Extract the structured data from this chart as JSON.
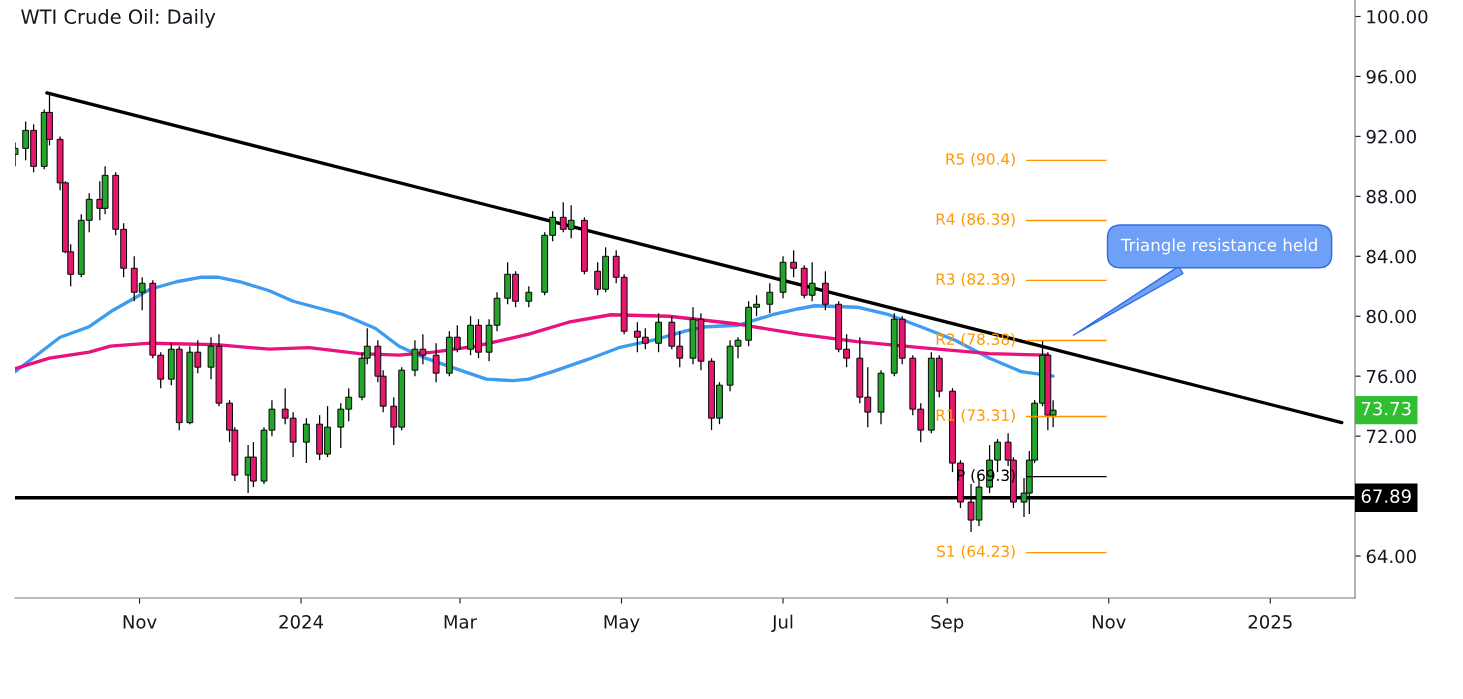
{
  "chart_data": {
    "type": "candlestick",
    "title": "WTI Crude Oil: Daily",
    "colors": [
      "#22a52a",
      "#22a52a",
      "#e6186e",
      "#22a52a",
      "#e6186e",
      "#e6186e",
      "#e6186e",
      "#e6186e",
      "#22a52a",
      "#22a52a",
      "#e6186e",
      "#22a52a",
      "#e6186e",
      "#e6186e",
      "#e6186e",
      "#22a52a",
      "#e6186e",
      "#e6186e",
      "#22a52a",
      "#e6186e",
      "#22a52a",
      "#e6186e",
      "#22a52a",
      "#e6186e",
      "#e6186e",
      "#e6186e",
      "#22a52a",
      "#e6186e",
      "#22a52a",
      "#22a52a",
      "#e6186e",
      "#e6186e",
      "#22a52a",
      "#e6186e",
      "#22a52a",
      "#22a52a",
      "#22a52a",
      "#22a52a",
      "#22a52a",
      "#e6186e",
      "#e6186e",
      "#e6186e",
      "#22a52a",
      "#22a52a",
      "#e6186e",
      "#e6186e",
      "#22a52a",
      "#e6186e",
      "#22a52a",
      "#e6186e",
      "#22a52a",
      "#22a52a",
      "#22a52a",
      "#e6186e",
      "#22a52a",
      "#22a52a",
      "#22a52a",
      "#e6186e",
      "#22a52a",
      "#e6186e",
      "#e6186e",
      "#22a52a",
      "#e6186e",
      "#e6186e",
      "#e6186e",
      "#e6186e",
      "#22a52a",
      "#e6186e",
      "#e6186e",
      "#22a52a",
      "#e6186e",
      "#e6186e",
      "#22a52a",
      "#22a52a",
      "#22a52a",
      "#22a52a",
      "#22a52a",
      "#22a52a",
      "#22a52a",
      "#e6186e",
      "#e6186e",
      "#22a52a",
      "#e6186e",
      "#e6186e",
      "#e6186e",
      "#e6186e",
      "#e6186e",
      "#22a52a",
      "#22a52a",
      "#e6186e",
      "#e6186e",
      "#e6186e",
      "#22a52a",
      "#e6186e",
      "#e6186e",
      "#e6186e",
      "#e6186e",
      "#22a52a",
      "#22a52a",
      "#22a52a",
      "#e6186e",
      "#e6186e",
      "#22a52a",
      "#22a52a",
      "#22a52a",
      "#22a52a",
      "#e6186e",
      "#22a52a"
    ],
    "x": [
      "2023-09-15",
      "2023-09-19",
      "2023-09-22",
      "2023-09-26",
      "2023-09-28",
      "2023-10-02",
      "2023-10-04",
      "2023-10-06",
      "2023-10-10",
      "2023-10-13",
      "2023-10-17",
      "2023-10-19",
      "2023-10-23",
      "2023-10-26",
      "2023-10-30",
      "2023-11-02",
      "2023-11-06",
      "2023-11-09",
      "2023-11-13",
      "2023-11-16",
      "2023-11-20",
      "2023-11-23",
      "2023-11-28",
      "2023-12-01",
      "2023-12-05",
      "2023-12-07",
      "2023-12-12",
      "2023-12-14",
      "2023-12-18",
      "2023-12-21",
      "2023-12-26",
      "2023-12-29",
      "2024-01-03",
      "2024-01-08",
      "2024-01-11",
      "2024-01-16",
      "2024-01-19",
      "2024-01-24",
      "2024-01-26",
      "2024-01-30",
      "2024-02-01",
      "2024-02-05",
      "2024-02-08",
      "2024-02-13",
      "2024-02-16",
      "2024-02-21",
      "2024-02-26",
      "2024-02-29",
      "2024-03-05",
      "2024-03-08",
      "2024-03-12",
      "2024-03-15",
      "2024-03-19",
      "2024-03-22",
      "2024-03-27",
      "2024-04-02",
      "2024-04-05",
      "2024-04-09",
      "2024-04-12",
      "2024-04-17",
      "2024-04-22",
      "2024-04-25",
      "2024-04-29",
      "2024-05-02",
      "2024-05-07",
      "2024-05-10",
      "2024-05-15",
      "2024-05-20",
      "2024-05-23",
      "2024-05-28",
      "2024-05-31",
      "2024-06-04",
      "2024-06-07",
      "2024-06-11",
      "2024-06-14",
      "2024-06-18",
      "2024-06-21",
      "2024-06-26",
      "2024-07-01",
      "2024-07-05",
      "2024-07-09",
      "2024-07-12",
      "2024-07-17",
      "2024-07-22",
      "2024-07-25",
      "2024-07-30",
      "2024-08-02",
      "2024-08-07",
      "2024-08-12",
      "2024-08-15",
      "2024-08-19",
      "2024-08-22",
      "2024-08-26",
      "2024-08-29",
      "2024-09-03",
      "2024-09-06",
      "2024-09-10",
      "2024-09-13",
      "2024-09-17",
      "2024-09-20",
      "2024-09-24",
      "2024-09-26",
      "2024-09-30",
      "2024-10-02",
      "2024-10-04",
      "2024-10-07",
      "2024-10-09",
      "2024-10-11"
    ],
    "ohlc": [
      [
        90.8,
        91.6,
        90.0,
        91.2
      ],
      [
        91.2,
        93.0,
        90.4,
        92.4
      ],
      [
        92.4,
        92.8,
        89.6,
        90.0
      ],
      [
        90.0,
        93.8,
        89.8,
        93.6
      ],
      [
        93.6,
        94.9,
        91.4,
        91.8
      ],
      [
        91.8,
        92.0,
        88.4,
        88.9
      ],
      [
        88.9,
        89.0,
        84.2,
        84.3
      ],
      [
        84.3,
        84.8,
        82.0,
        82.8
      ],
      [
        82.8,
        86.8,
        82.6,
        86.4
      ],
      [
        86.4,
        88.2,
        85.6,
        87.8
      ],
      [
        87.8,
        89.0,
        86.4,
        87.2
      ],
      [
        87.2,
        90.0,
        86.8,
        89.4
      ],
      [
        89.4,
        89.6,
        85.4,
        85.8
      ],
      [
        85.8,
        86.2,
        82.6,
        83.2
      ],
      [
        83.2,
        84.0,
        81.0,
        81.6
      ],
      [
        81.6,
        82.6,
        80.4,
        82.2
      ],
      [
        82.2,
        82.4,
        77.2,
        77.4
      ],
      [
        77.4,
        77.6,
        75.2,
        75.8
      ],
      [
        75.8,
        78.2,
        75.4,
        77.8
      ],
      [
        77.8,
        78.0,
        72.4,
        72.9
      ],
      [
        72.9,
        78.0,
        72.8,
        77.6
      ],
      [
        77.6,
        78.4,
        76.2,
        76.6
      ],
      [
        76.6,
        78.6,
        75.8,
        78.0
      ],
      [
        78.0,
        78.8,
        74.0,
        74.2
      ],
      [
        74.2,
        74.4,
        71.6,
        72.4
      ],
      [
        72.4,
        72.6,
        69.0,
        69.4
      ],
      [
        69.4,
        71.4,
        68.2,
        70.6
      ],
      [
        70.6,
        71.6,
        68.6,
        69.0
      ],
      [
        69.0,
        72.6,
        68.8,
        72.4
      ],
      [
        72.4,
        74.4,
        72.0,
        73.8
      ],
      [
        73.8,
        75.2,
        72.8,
        73.2
      ],
      [
        73.2,
        73.6,
        70.6,
        71.6
      ],
      [
        71.6,
        73.2,
        70.2,
        72.8
      ],
      [
        72.8,
        73.4,
        70.4,
        70.8
      ],
      [
        70.8,
        74.0,
        70.6,
        72.6
      ],
      [
        72.6,
        74.2,
        71.2,
        73.8
      ],
      [
        73.8,
        75.2,
        73.0,
        74.6
      ],
      [
        74.6,
        77.6,
        74.4,
        77.2
      ],
      [
        77.2,
        79.2,
        76.8,
        78.0
      ],
      [
        78.0,
        78.4,
        75.6,
        76.0
      ],
      [
        76.0,
        76.4,
        73.6,
        74.0
      ],
      [
        74.0,
        74.6,
        71.4,
        72.6
      ],
      [
        72.6,
        76.6,
        72.4,
        76.4
      ],
      [
        76.4,
        78.4,
        76.0,
        77.8
      ],
      [
        77.8,
        78.8,
        76.8,
        77.4
      ],
      [
        77.4,
        78.2,
        75.6,
        76.2
      ],
      [
        76.2,
        79.0,
        76.0,
        78.6
      ],
      [
        78.6,
        79.4,
        77.6,
        77.8
      ],
      [
        77.8,
        80.0,
        77.4,
        79.4
      ],
      [
        79.4,
        79.8,
        77.2,
        77.6
      ],
      [
        77.6,
        79.8,
        77.0,
        79.4
      ],
      [
        79.4,
        81.6,
        79.0,
        81.2
      ],
      [
        81.2,
        83.6,
        80.8,
        82.8
      ],
      [
        82.8,
        83.0,
        80.6,
        81.0
      ],
      [
        81.0,
        82.0,
        80.6,
        81.6
      ],
      [
        81.6,
        85.6,
        81.4,
        85.4
      ],
      [
        85.4,
        87.0,
        85.0,
        86.6
      ],
      [
        86.6,
        87.6,
        85.6,
        85.8
      ],
      [
        85.8,
        87.4,
        85.2,
        86.4
      ],
      [
        86.4,
        86.6,
        82.8,
        83.0
      ],
      [
        83.0,
        83.6,
        81.4,
        81.8
      ],
      [
        81.8,
        84.6,
        81.6,
        84.0
      ],
      [
        84.0,
        84.4,
        82.2,
        82.6
      ],
      [
        82.6,
        82.8,
        78.8,
        79.0
      ],
      [
        79.0,
        79.6,
        77.6,
        78.6
      ],
      [
        78.6,
        79.2,
        77.8,
        78.2
      ],
      [
        78.2,
        80.2,
        77.6,
        79.6
      ],
      [
        79.6,
        80.0,
        77.8,
        78.0
      ],
      [
        78.0,
        79.0,
        76.6,
        77.2
      ],
      [
        77.2,
        80.6,
        76.8,
        79.8
      ],
      [
        79.8,
        80.2,
        76.4,
        77.0
      ],
      [
        77.0,
        77.2,
        72.4,
        73.2
      ],
      [
        73.2,
        75.6,
        72.8,
        75.4
      ],
      [
        75.4,
        78.4,
        75.0,
        78.0
      ],
      [
        78.0,
        78.6,
        77.2,
        78.4
      ],
      [
        78.4,
        81.0,
        78.0,
        80.6
      ],
      [
        80.6,
        81.4,
        80.0,
        80.8
      ],
      [
        80.8,
        82.2,
        80.2,
        81.6
      ],
      [
        81.6,
        84.0,
        81.2,
        83.6
      ],
      [
        83.6,
        84.4,
        82.6,
        83.2
      ],
      [
        83.2,
        83.4,
        81.2,
        81.4
      ],
      [
        81.4,
        83.6,
        81.0,
        82.2
      ],
      [
        82.2,
        83.0,
        80.4,
        80.8
      ],
      [
        80.8,
        81.0,
        77.6,
        77.8
      ],
      [
        77.8,
        78.8,
        76.6,
        77.2
      ],
      [
        77.2,
        78.6,
        74.2,
        74.6
      ],
      [
        74.6,
        76.6,
        72.6,
        73.6
      ],
      [
        73.6,
        76.4,
        72.8,
        76.2
      ],
      [
        76.2,
        80.2,
        76.0,
        79.8
      ],
      [
        79.8,
        80.0,
        76.8,
        77.2
      ],
      [
        77.2,
        77.4,
        73.4,
        73.8
      ],
      [
        73.8,
        74.2,
        71.6,
        72.4
      ],
      [
        72.4,
        77.6,
        72.2,
        77.2
      ],
      [
        77.2,
        77.4,
        74.6,
        75.0
      ],
      [
        75.0,
        75.2,
        69.6,
        70.2
      ],
      [
        70.2,
        70.4,
        67.2,
        67.6
      ],
      [
        67.6,
        68.8,
        65.6,
        66.4
      ],
      [
        66.4,
        69.2,
        66.0,
        68.6
      ],
      [
        68.6,
        71.4,
        68.2,
        70.4
      ],
      [
        70.4,
        71.8,
        69.6,
        71.6
      ],
      [
        71.6,
        72.2,
        70.0,
        70.4
      ],
      [
        70.4,
        70.6,
        67.2,
        67.6
      ],
      [
        67.6,
        69.2,
        66.6,
        68.2
      ],
      [
        68.2,
        71.0,
        66.8,
        70.4
      ],
      [
        70.4,
        74.4,
        70.2,
        74.2
      ],
      [
        74.2,
        78.4,
        74.0,
        77.4
      ],
      [
        77.4,
        77.6,
        72.4,
        73.4
      ],
      [
        73.4,
        74.4,
        72.6,
        73.73
      ]
    ],
    "series": [
      {
        "type": "line",
        "color": "#3d9bf0",
        "x": [
          "2023-09-15",
          "2023-10-02",
          "2023-10-13",
          "2023-10-22",
          "2023-11-05",
          "2023-11-15",
          "2023-11-24",
          "2023-12-01",
          "2023-12-09",
          "2023-12-20",
          "2023-12-29",
          "2024-01-17",
          "2024-01-29",
          "2024-02-07",
          "2024-02-17",
          "2024-03-01",
          "2024-03-11",
          "2024-03-21",
          "2024-03-27",
          "2024-04-05",
          "2024-04-18",
          "2024-04-30",
          "2024-05-13",
          "2024-05-25",
          "2024-06-02",
          "2024-06-14",
          "2024-06-27",
          "2024-07-07",
          "2024-07-13",
          "2024-07-29",
          "2024-08-10",
          "2024-08-22",
          "2024-09-04",
          "2024-09-17",
          "2024-09-29",
          "2024-10-11"
        ],
        "values": [
          76.3,
          78.6,
          79.3,
          80.4,
          81.8,
          82.3,
          82.6,
          82.6,
          82.3,
          81.7,
          81.0,
          80.1,
          79.2,
          78.0,
          77.2,
          76.4,
          75.8,
          75.7,
          75.8,
          76.3,
          77.1,
          77.9,
          78.4,
          79.0,
          79.3,
          79.4,
          80.1,
          80.5,
          80.7,
          80.6,
          80.1,
          79.3,
          78.4,
          77.2,
          76.3,
          76.0
        ]
      },
      {
        "type": "line",
        "color": "#e8127c",
        "x": [
          "2023-09-15",
          "2023-09-28",
          "2023-10-13",
          "2023-10-21",
          "2023-11-05",
          "2023-11-30",
          "2023-12-20",
          "2024-01-04",
          "2024-01-23",
          "2024-02-07",
          "2024-02-20",
          "2024-03-07",
          "2024-03-27",
          "2024-04-11",
          "2024-04-27",
          "2024-05-19",
          "2024-06-13",
          "2024-07-07",
          "2024-07-29",
          "2024-08-22",
          "2024-09-17",
          "2024-10-09"
        ],
        "values": [
          76.5,
          77.2,
          77.6,
          78.0,
          78.2,
          78.1,
          77.8,
          77.9,
          77.5,
          77.4,
          77.6,
          78.0,
          78.8,
          79.6,
          80.1,
          80.0,
          79.5,
          78.8,
          78.3,
          77.9,
          77.5,
          77.4
        ]
      },
      {
        "type": "line",
        "color": "#000000",
        "x": [
          "2023-09-27",
          "2025-01-28"
        ],
        "values": [
          94.9,
          72.9
        ]
      },
      {
        "type": "line",
        "name": "R5 (90.4)",
        "color": "#ff9800",
        "x": [
          "2024-10-01",
          "2024-10-31"
        ],
        "values": [
          90.4,
          90.4
        ]
      },
      {
        "type": "line",
        "name": "R4 (86.39)",
        "color": "#ff9800",
        "x": [
          "2024-10-01",
          "2024-10-31"
        ],
        "values": [
          86.39,
          86.39
        ]
      },
      {
        "type": "line",
        "name": "R3 (82.39)",
        "color": "#ff9800",
        "x": [
          "2024-10-01",
          "2024-10-31"
        ],
        "values": [
          82.39,
          82.39
        ]
      },
      {
        "type": "line",
        "name": "R2 (78.38)",
        "color": "#ff9800",
        "x": [
          "2024-10-01",
          "2024-10-31"
        ],
        "values": [
          78.38,
          78.38
        ]
      },
      {
        "type": "line",
        "name": "R1 (73.31)",
        "color": "#ff9800",
        "x": [
          "2024-10-01",
          "2024-10-31"
        ],
        "values": [
          73.31,
          73.31
        ]
      },
      {
        "type": "line",
        "name": "P (69.3)",
        "color": "#000000",
        "x": [
          "2024-10-01",
          "2024-10-31"
        ],
        "values": [
          69.3,
          69.3
        ]
      },
      {
        "type": "line",
        "name": "S1 (64.23)",
        "color": "#ff9800",
        "x": [
          "2024-10-01",
          "2024-10-31"
        ],
        "values": [
          64.23,
          64.23
        ]
      }
    ],
    "ref_lines": [
      {
        "axis": "y",
        "value": 67.89,
        "label": "67.89",
        "color": "#000000"
      }
    ],
    "annotations": [
      "Triangle resistance held",
      "73.73"
    ],
    "xlim": [
      "2023-09-15",
      "2025-02-02"
    ],
    "xticks": [
      {
        "value": "2023-11-01",
        "label": "Nov"
      },
      {
        "value": "2024-01-01",
        "label": "2024"
      },
      {
        "value": "2024-03-01",
        "label": "Mar"
      },
      {
        "value": "2024-05-01",
        "label": "May"
      },
      {
        "value": "2024-07-01",
        "label": "Jul"
      },
      {
        "value": "2024-09-01",
        "label": "Sep"
      },
      {
        "value": "2024-11-01",
        "label": "Nov"
      },
      {
        "value": "2025-01-01",
        "label": "2025"
      }
    ],
    "ylim": [
      61.2,
      101.1
    ],
    "yticks": [
      {
        "value": 64,
        "label": "64.00"
      },
      {
        "value": 72,
        "label": "72.00"
      },
      {
        "value": 76,
        "label": "76.00"
      },
      {
        "value": 80,
        "label": "80.00"
      },
      {
        "value": 84,
        "label": "84.00"
      },
      {
        "value": 88,
        "label": "88.00"
      },
      {
        "value": 92,
        "label": "92.00"
      },
      {
        "value": 96,
        "label": "96.00"
      },
      {
        "value": 100,
        "label": "100.00"
      }
    ],
    "grid": false
  }
}
